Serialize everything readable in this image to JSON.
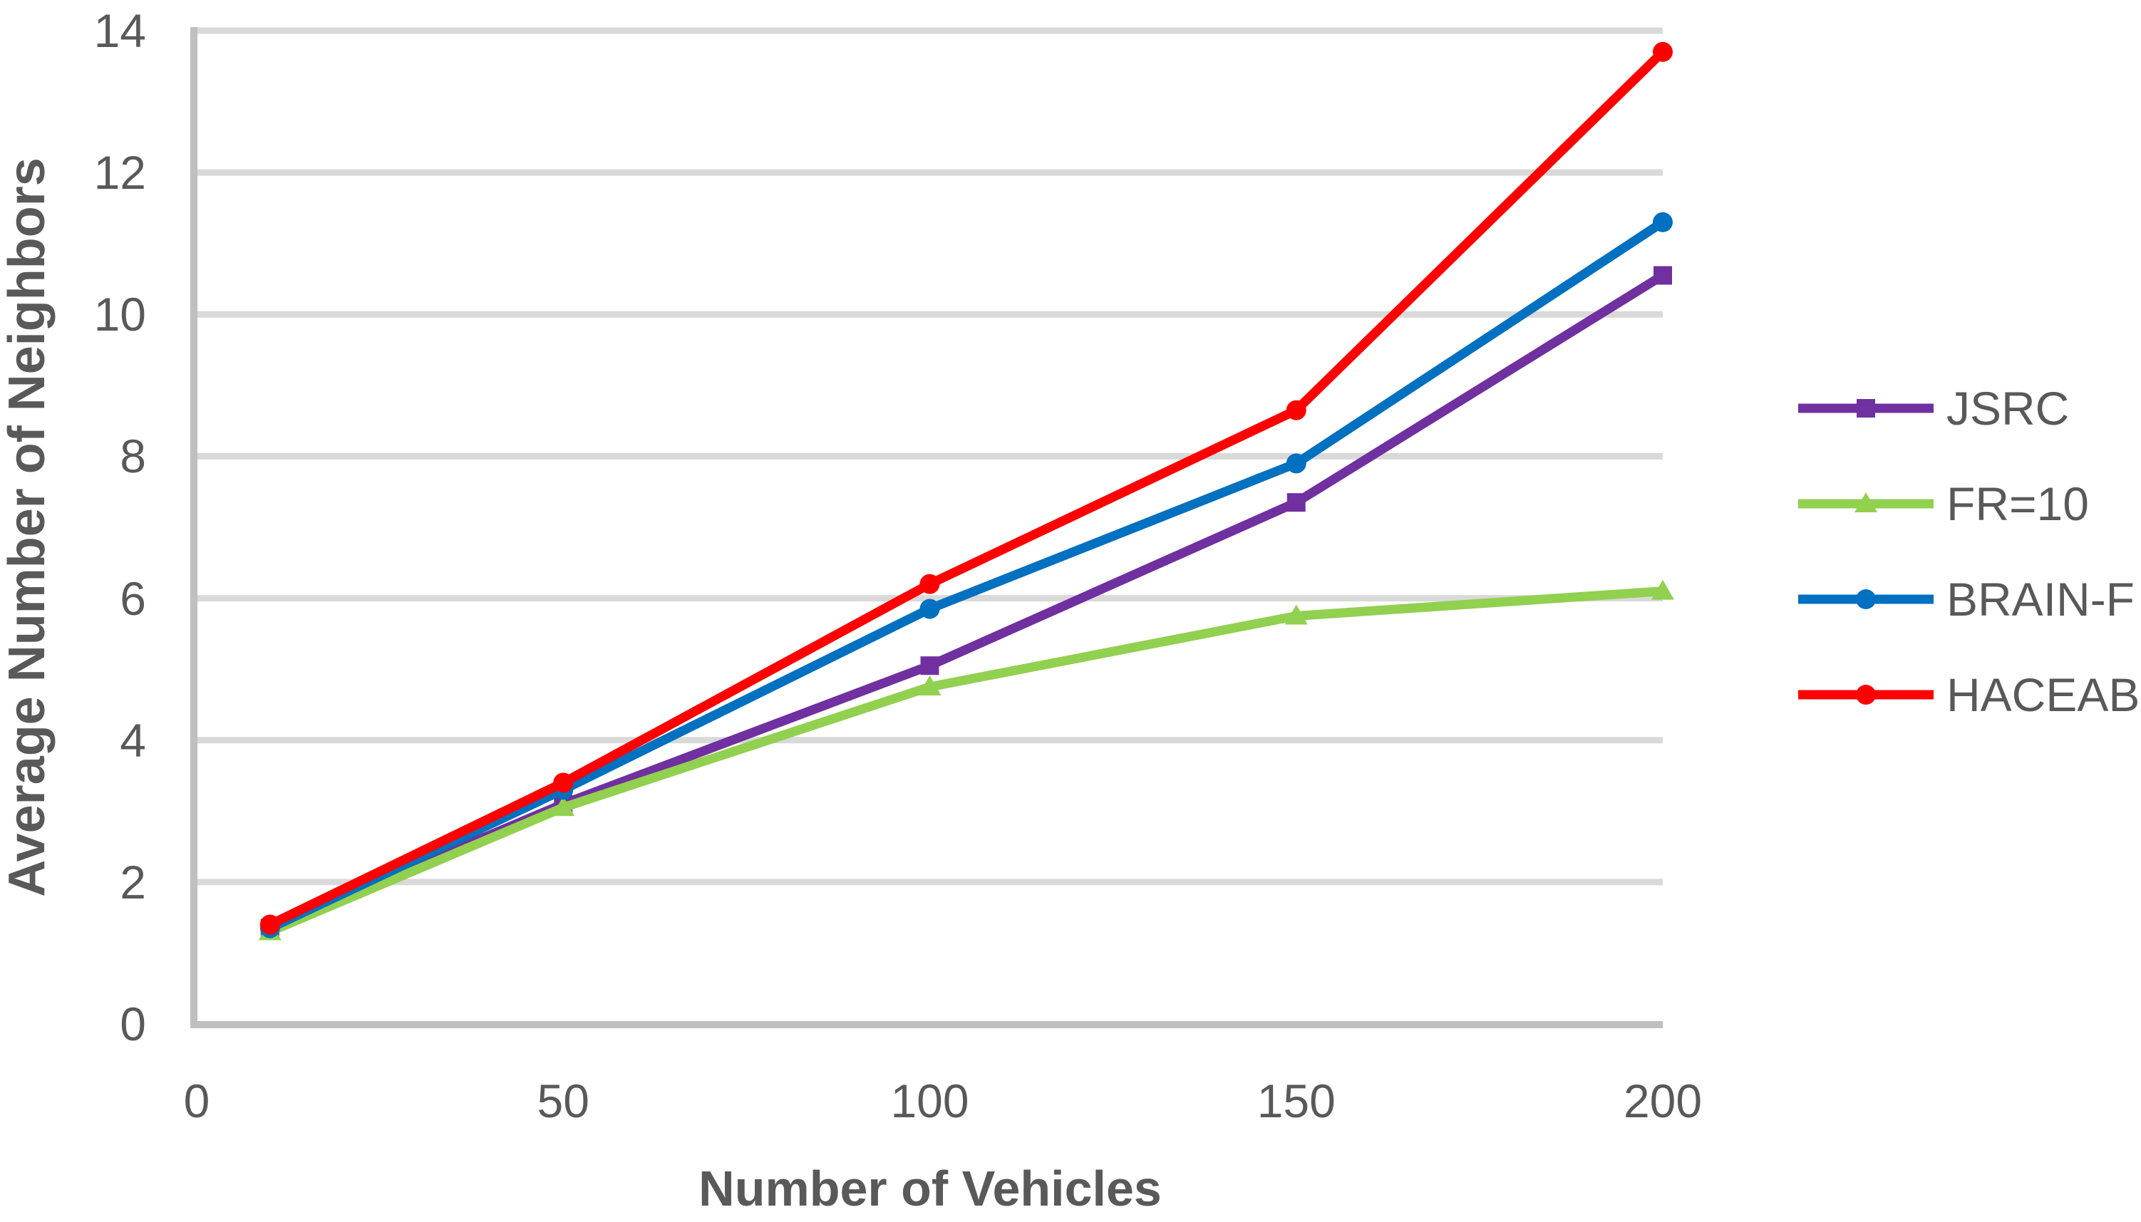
{
  "chart_data": {
    "type": "line",
    "title": "",
    "xlabel": "Number of Vehicles",
    "ylabel": "Average Number of Neighbors",
    "x": [
      10,
      50,
      100,
      150,
      200
    ],
    "x_ticks": [
      0,
      50,
      100,
      150,
      200
    ],
    "y_ticks": [
      0,
      2,
      4,
      6,
      8,
      10,
      12,
      14
    ],
    "xlim": [
      0,
      200
    ],
    "ylim": [
      0,
      14
    ],
    "grid": "horizontal",
    "legend_position": "right",
    "grid_color": "#D9D9D9",
    "axis_color": "#BFBFBF",
    "text_color": "#595959",
    "series": [
      {
        "name": "JSRC",
        "color": "#7030A0",
        "marker": "square",
        "values": [
          1.35,
          3.1,
          5.05,
          7.35,
          10.55
        ]
      },
      {
        "name": "FR=10",
        "color": "#92D050",
        "marker": "triangle",
        "values": [
          1.3,
          3.05,
          4.75,
          5.75,
          6.1
        ]
      },
      {
        "name": "BRAIN-F",
        "color": "#0070C0",
        "marker": "circle",
        "values": [
          1.35,
          3.3,
          5.85,
          7.9,
          11.3
        ]
      },
      {
        "name": "HACEAB",
        "color": "#FF0000",
        "marker": "circle",
        "values": [
          1.4,
          3.4,
          6.2,
          8.65,
          13.7
        ]
      }
    ]
  }
}
